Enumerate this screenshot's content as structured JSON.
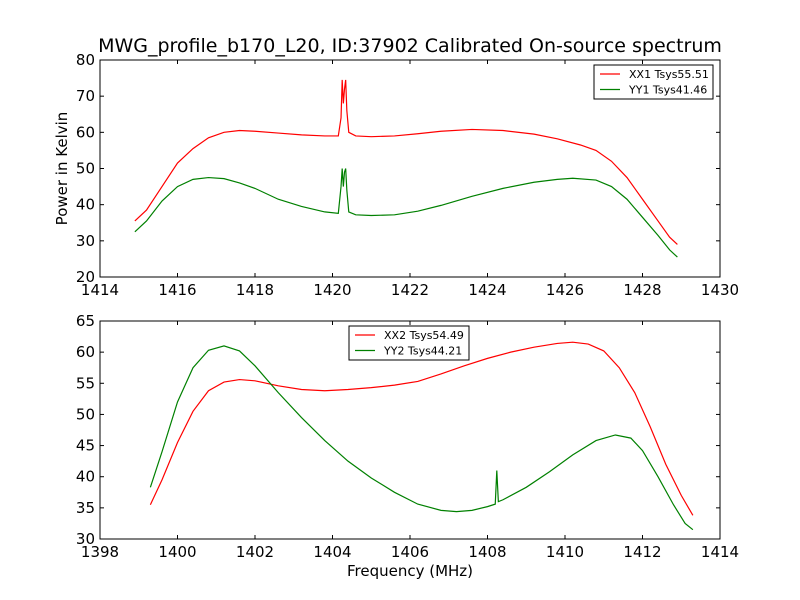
{
  "figure_title": "MWG_profile_b170_L20, ID:37902 Calibrated On-source spectrum",
  "colors": {
    "series1": "#ff0000",
    "series2": "#008000",
    "axes": "#000000",
    "background": "#ffffff"
  },
  "chart_data": [
    {
      "type": "line",
      "title": "MWG_profile_b170_L20, ID:37902 Calibrated On-source spectrum",
      "xlabel": "",
      "ylabel": "Power in Kelvin",
      "xlim": [
        1414,
        1430
      ],
      "ylim": [
        20,
        80
      ],
      "xticks": [
        1414,
        1416,
        1418,
        1420,
        1422,
        1424,
        1426,
        1428,
        1430
      ],
      "yticks": [
        20,
        30,
        40,
        50,
        60,
        70,
        80
      ],
      "grid": false,
      "legend_position": "top-right",
      "series": [
        {
          "name": "XX1 Tsys55.51",
          "color": "#ff0000",
          "points": [
            [
              1414.9,
              35.5
            ],
            [
              1415.2,
              38.5
            ],
            [
              1415.6,
              45
            ],
            [
              1416.0,
              51.5
            ],
            [
              1416.4,
              55.5
            ],
            [
              1416.8,
              58.5
            ],
            [
              1417.2,
              60
            ],
            [
              1417.6,
              60.5
            ],
            [
              1418.0,
              60.3
            ],
            [
              1418.6,
              59.8
            ],
            [
              1419.2,
              59.3
            ],
            [
              1419.8,
              59.0
            ],
            [
              1420.15,
              59.0
            ],
            [
              1420.22,
              64
            ],
            [
              1420.25,
              74.5
            ],
            [
              1420.28,
              68
            ],
            [
              1420.31,
              72
            ],
            [
              1420.34,
              74.5
            ],
            [
              1420.37,
              66
            ],
            [
              1420.42,
              60
            ],
            [
              1420.6,
              59.0
            ],
            [
              1421.0,
              58.8
            ],
            [
              1421.6,
              59.0
            ],
            [
              1422.2,
              59.6
            ],
            [
              1422.8,
              60.3
            ],
            [
              1423.6,
              60.8
            ],
            [
              1424.4,
              60.5
            ],
            [
              1425.2,
              59.5
            ],
            [
              1425.8,
              58.2
            ],
            [
              1426.4,
              56.5
            ],
            [
              1426.8,
              55.0
            ],
            [
              1427.2,
              52
            ],
            [
              1427.6,
              47.5
            ],
            [
              1428.0,
              41.5
            ],
            [
              1428.4,
              35.5
            ],
            [
              1428.7,
              31
            ],
            [
              1428.9,
              29
            ]
          ]
        },
        {
          "name": "YY1 Tsys41.46",
          "color": "#008000",
          "points": [
            [
              1414.9,
              32.5
            ],
            [
              1415.2,
              35.5
            ],
            [
              1415.6,
              41
            ],
            [
              1416.0,
              45
            ],
            [
              1416.4,
              47
            ],
            [
              1416.8,
              47.5
            ],
            [
              1417.2,
              47.2
            ],
            [
              1417.6,
              46
            ],
            [
              1418.0,
              44.5
            ],
            [
              1418.6,
              41.5
            ],
            [
              1419.2,
              39.5
            ],
            [
              1419.8,
              38.0
            ],
            [
              1420.15,
              37.6
            ],
            [
              1420.22,
              45
            ],
            [
              1420.25,
              50
            ],
            [
              1420.28,
              45
            ],
            [
              1420.31,
              49
            ],
            [
              1420.34,
              50
            ],
            [
              1420.37,
              44
            ],
            [
              1420.42,
              38
            ],
            [
              1420.6,
              37.2
            ],
            [
              1421.0,
              37.0
            ],
            [
              1421.6,
              37.2
            ],
            [
              1422.2,
              38.2
            ],
            [
              1422.8,
              39.8
            ],
            [
              1423.6,
              42.3
            ],
            [
              1424.4,
              44.5
            ],
            [
              1425.2,
              46.2
            ],
            [
              1425.8,
              47.0
            ],
            [
              1426.2,
              47.3
            ],
            [
              1426.8,
              46.8
            ],
            [
              1427.2,
              45
            ],
            [
              1427.6,
              41.5
            ],
            [
              1428.0,
              36.5
            ],
            [
              1428.4,
              31.5
            ],
            [
              1428.7,
              27.5
            ],
            [
              1428.9,
              25.5
            ]
          ]
        }
      ]
    },
    {
      "type": "line",
      "title": "",
      "xlabel": "Frequency (MHz)",
      "ylabel": "",
      "xlim": [
        1398,
        1414
      ],
      "ylim": [
        30,
        65
      ],
      "xticks": [
        1398,
        1400,
        1402,
        1404,
        1406,
        1408,
        1410,
        1412,
        1414
      ],
      "yticks": [
        30,
        35,
        40,
        45,
        50,
        55,
        60,
        65
      ],
      "grid": false,
      "legend_position": "upper-center",
      "series": [
        {
          "name": "XX2 Tsys54.49",
          "color": "#ff0000",
          "points": [
            [
              1399.3,
              35.5
            ],
            [
              1399.6,
              39.5
            ],
            [
              1400.0,
              45.5
            ],
            [
              1400.4,
              50.5
            ],
            [
              1400.8,
              53.8
            ],
            [
              1401.2,
              55.2
            ],
            [
              1401.6,
              55.6
            ],
            [
              1402.0,
              55.4
            ],
            [
              1402.6,
              54.6
            ],
            [
              1403.2,
              54.0
            ],
            [
              1403.8,
              53.8
            ],
            [
              1404.4,
              54.0
            ],
            [
              1405.0,
              54.3
            ],
            [
              1405.6,
              54.7
            ],
            [
              1406.2,
              55.3
            ],
            [
              1406.8,
              56.5
            ],
            [
              1407.4,
              57.8
            ],
            [
              1408.0,
              59.0
            ],
            [
              1408.6,
              60.0
            ],
            [
              1409.2,
              60.8
            ],
            [
              1409.8,
              61.4
            ],
            [
              1410.2,
              61.6
            ],
            [
              1410.6,
              61.3
            ],
            [
              1411.0,
              60.2
            ],
            [
              1411.4,
              57.5
            ],
            [
              1411.8,
              53.5
            ],
            [
              1412.2,
              48
            ],
            [
              1412.6,
              42
            ],
            [
              1413.0,
              37
            ],
            [
              1413.3,
              33.8
            ]
          ]
        },
        {
          "name": "YY2 Tsys44.21",
          "color": "#008000",
          "points": [
            [
              1399.3,
              38.3
            ],
            [
              1399.6,
              44
            ],
            [
              1400.0,
              52
            ],
            [
              1400.4,
              57.5
            ],
            [
              1400.8,
              60.3
            ],
            [
              1401.2,
              61.0
            ],
            [
              1401.6,
              60.2
            ],
            [
              1402.0,
              57.8
            ],
            [
              1402.6,
              53.5
            ],
            [
              1403.2,
              49.5
            ],
            [
              1403.8,
              45.8
            ],
            [
              1404.4,
              42.5
            ],
            [
              1405.0,
              39.8
            ],
            [
              1405.6,
              37.5
            ],
            [
              1406.2,
              35.6
            ],
            [
              1406.8,
              34.6
            ],
            [
              1407.2,
              34.4
            ],
            [
              1407.6,
              34.6
            ],
            [
              1408.0,
              35.2
            ],
            [
              1408.2,
              35.6
            ],
            [
              1408.24,
              41
            ],
            [
              1408.28,
              36
            ],
            [
              1408.4,
              36.3
            ],
            [
              1409.0,
              38.3
            ],
            [
              1409.6,
              40.8
            ],
            [
              1410.2,
              43.5
            ],
            [
              1410.8,
              45.8
            ],
            [
              1411.3,
              46.7
            ],
            [
              1411.7,
              46.2
            ],
            [
              1412.0,
              44.2
            ],
            [
              1412.4,
              40
            ],
            [
              1412.8,
              35.5
            ],
            [
              1413.1,
              32.5
            ],
            [
              1413.3,
              31.5
            ]
          ]
        }
      ]
    }
  ]
}
